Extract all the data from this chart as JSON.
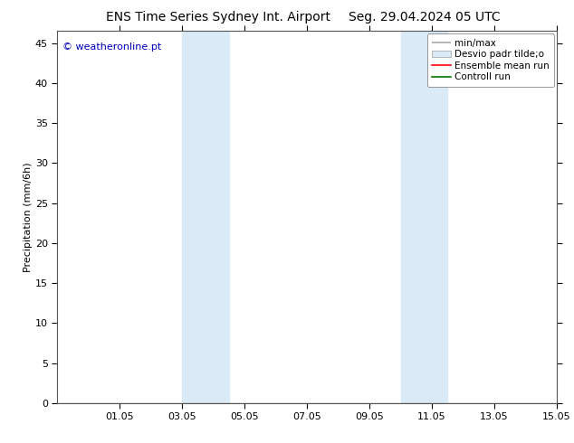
{
  "title_left": "ENS Time Series Sydney Int. Airport",
  "title_right": "Seg. 29.04.2024 05 UTC",
  "ylabel": "Precipitation (mm/6h)",
  "watermark": "© weatheronline.pt",
  "watermark_color": "#0000bb",
  "ylim": [
    0,
    46.5
  ],
  "yticks": [
    0,
    5,
    10,
    15,
    20,
    25,
    30,
    35,
    40,
    45
  ],
  "xlim": [
    0,
    16
  ],
  "xtick_labels": [
    "01.05",
    "03.05",
    "05.05",
    "07.05",
    "09.05",
    "11.05",
    "13.05",
    "15.05"
  ],
  "xtick_positions": [
    2,
    4,
    6,
    8,
    10,
    12,
    14,
    16
  ],
  "shaded_bands": [
    {
      "x_start": 4.0,
      "x_end": 5.5,
      "color": "#daeaf7"
    },
    {
      "x_start": 11.0,
      "x_end": 12.5,
      "color": "#daeaf7"
    }
  ],
  "legend_entries": [
    {
      "label": "min/max",
      "color": "#aaaaaa",
      "type": "hline"
    },
    {
      "label": "Desvio padr tilde;o",
      "color": "#daeaf7",
      "type": "box"
    },
    {
      "label": "Ensemble mean run",
      "color": "#ff0000",
      "type": "line"
    },
    {
      "label": "Controll run",
      "color": "#007700",
      "type": "line"
    }
  ],
  "background_color": "#ffffff",
  "plot_bg_color": "#ffffff",
  "border_color": "#555555",
  "title_fontsize": 10,
  "tick_fontsize": 8,
  "ylabel_fontsize": 8,
  "legend_fontsize": 7.5
}
